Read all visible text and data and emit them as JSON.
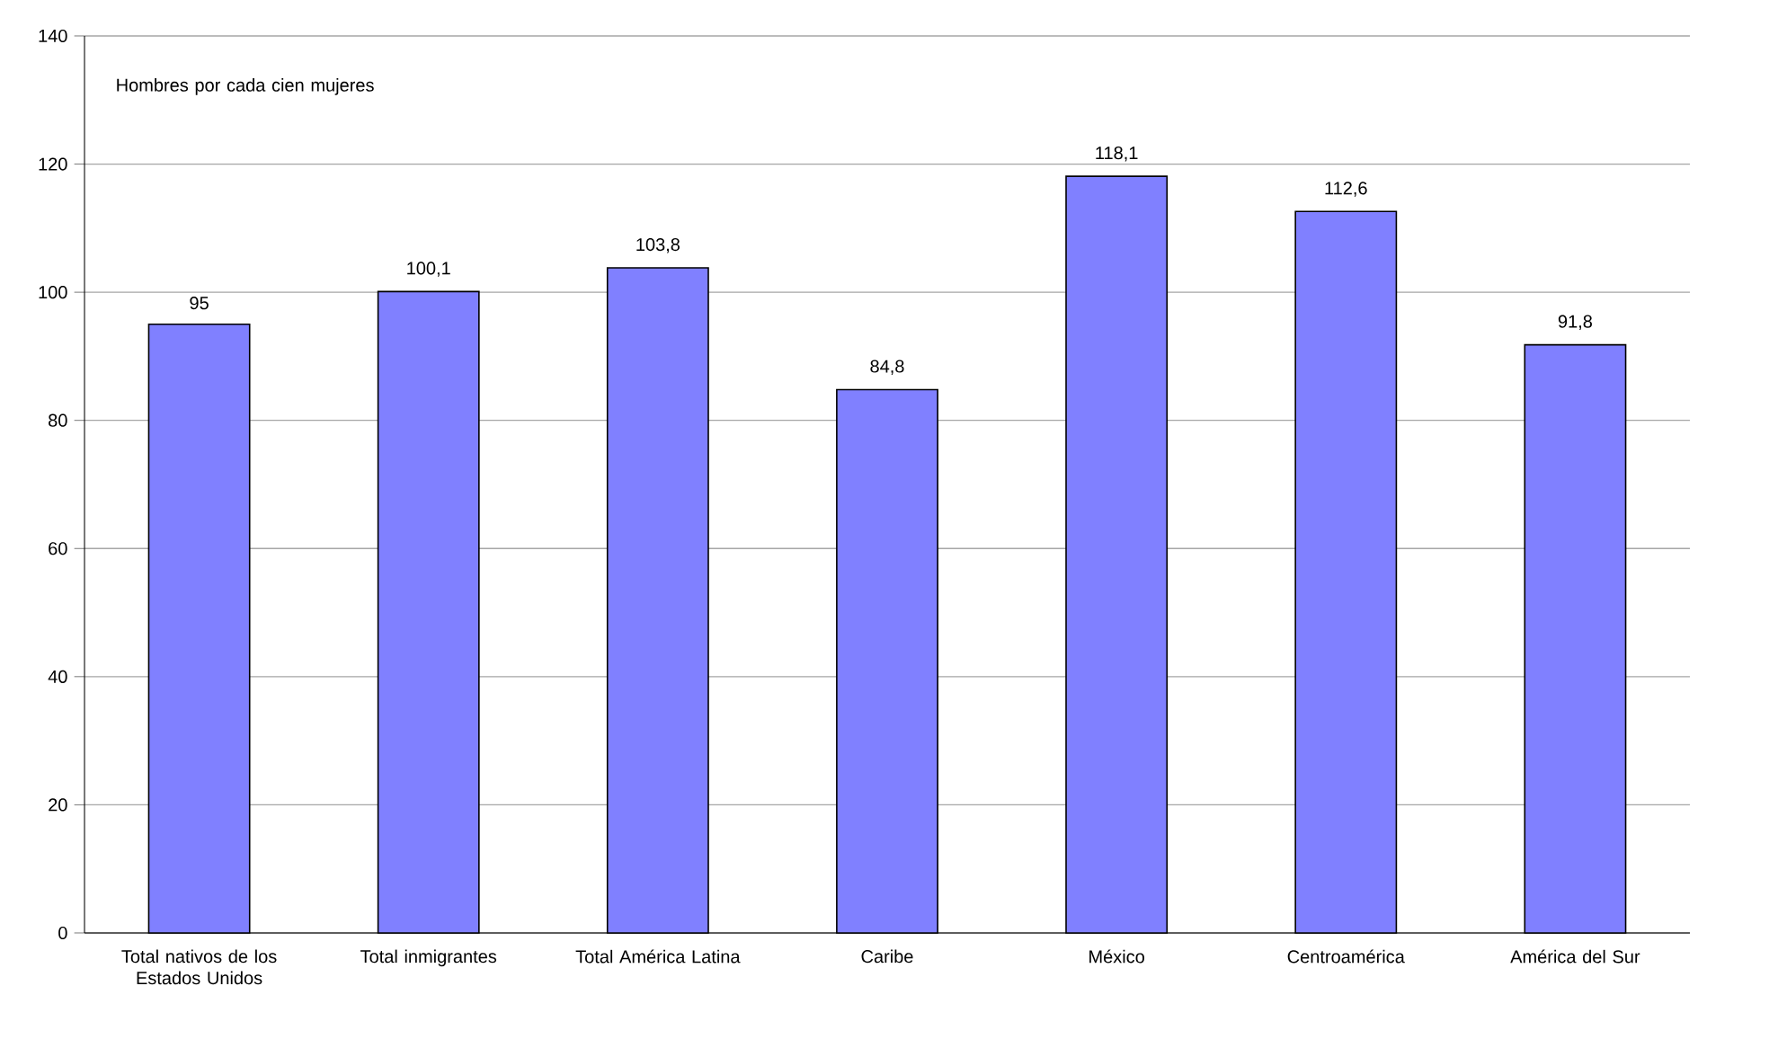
{
  "chart_data": {
    "type": "bar",
    "categories": [
      "Total nativos de los Estados Unidos",
      "Total inmigrantes",
      "Total América Latina",
      "Caribe",
      "México",
      "Centroamérica",
      "América del Sur"
    ],
    "values": [
      95,
      100.1,
      103.8,
      84.8,
      118.1,
      112.6,
      91.8
    ],
    "value_labels": [
      "95",
      "100,1",
      "103,8",
      "84,8",
      "118,1",
      "112,6",
      "91,8"
    ],
    "color": "#8080ff",
    "ylim": [
      0,
      140
    ],
    "yticks": [
      0,
      20,
      40,
      60,
      80,
      100,
      120,
      140
    ],
    "grid": "y",
    "annotations": [
      "Hombres por cada cien mujeres"
    ]
  }
}
